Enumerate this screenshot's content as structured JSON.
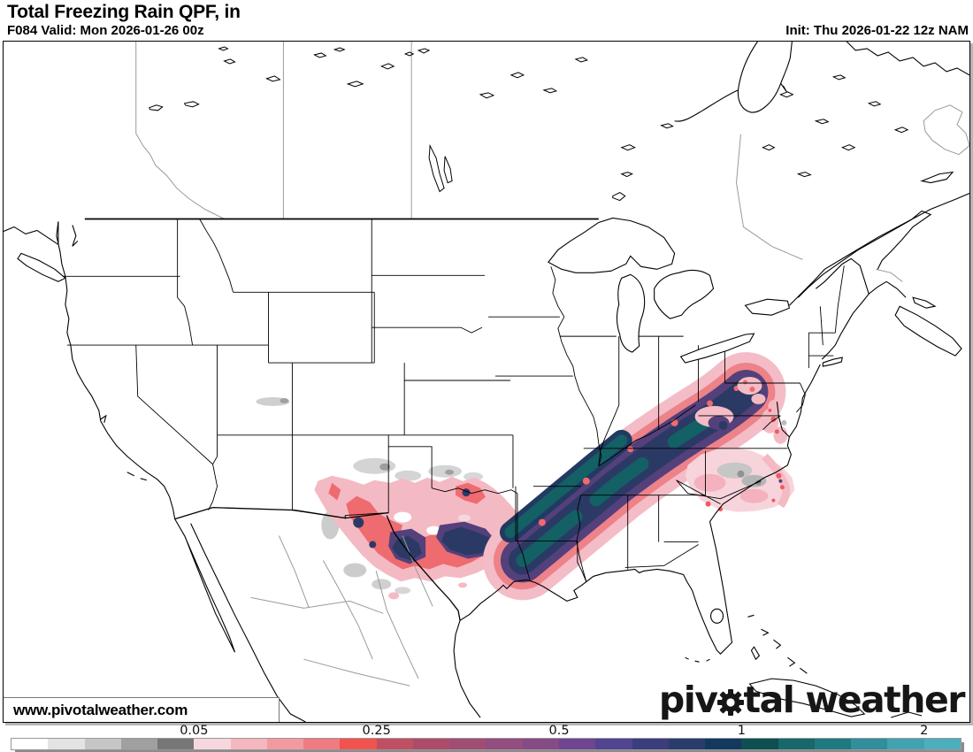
{
  "header": {
    "title": "Total Freezing Rain QPF, in",
    "valid": "F084 Valid: Mon 2026-01-26 00z",
    "init": "Init: Thu 2026-01-22 12z NAM"
  },
  "watermark": "www.pivotalweather.com",
  "logo": {
    "left": "piv",
    "mid": "tal",
    "right": "weather"
  },
  "legend": {
    "cells": 26,
    "colors": [
      "#ffffff",
      "#e3e3e3",
      "#c6c6c6",
      "#a0a0a0",
      "#777777",
      "#f6d7dd",
      "#f4b6bf",
      "#f39aa0",
      "#f07b80",
      "#f1534f",
      "#c04f63",
      "#ad4c6a",
      "#a04d74",
      "#934d7e",
      "#864a85",
      "#6f4590",
      "#514490",
      "#3c3d7c",
      "#2a3c6c",
      "#14395e",
      "#0e4f52",
      "#17686b",
      "#1f7a80",
      "#308f9a",
      "#41a2b0",
      "#4daebd"
    ],
    "ticks": [
      {
        "label": "0.05",
        "boundary": 5
      },
      {
        "label": "0.25",
        "boundary": 10
      },
      {
        "label": "0.5",
        "boundary": 15
      },
      {
        "label": "1",
        "boundary": 20
      },
      {
        "label": "2",
        "boundary": 25
      }
    ]
  },
  "map_colors": {
    "trace_gray": "#c6c6c6",
    "light_icing_pink": "#f4bac4",
    "moderate_icing_red": "#ee6b70",
    "heavy_icing_purple": "#54407b",
    "severe_icing_navy": "#2b3a64",
    "extreme_icing_teal": "#136065"
  }
}
